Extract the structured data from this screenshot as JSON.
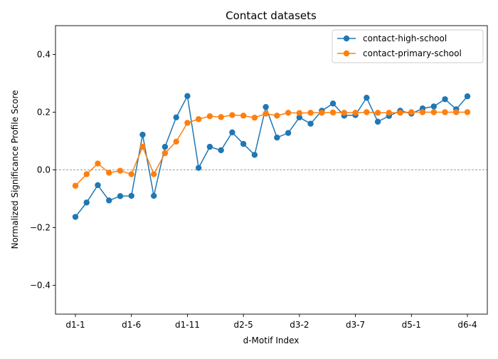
{
  "chart_data": {
    "type": "line",
    "title": "Contact datasets",
    "xlabel": "d-Motif Index",
    "ylabel": "Normalized Significance Profile Score",
    "ylim": [
      -0.5,
      0.5
    ],
    "yticks": [
      -0.4,
      -0.2,
      0.0,
      0.2,
      0.4
    ],
    "ytick_labels": [
      "−0.4",
      "−0.2",
      "0.0",
      "0.2",
      "0.4"
    ],
    "xtick_labels": [
      "d1-1",
      "d1-6",
      "d1-11",
      "d2-5",
      "d3-2",
      "d3-7",
      "d5-1",
      "d6-4"
    ],
    "xtick_positions": [
      0,
      5,
      10,
      15,
      20,
      25,
      30,
      35
    ],
    "zero_line": true,
    "grid": false,
    "legend_position": "top-right",
    "series": [
      {
        "name": "contact-high-school",
        "color": "#1f77b4",
        "values": [
          -0.163,
          -0.113,
          -0.053,
          -0.106,
          -0.091,
          -0.09,
          0.122,
          -0.09,
          0.08,
          0.182,
          0.256,
          0.007,
          0.08,
          0.068,
          0.13,
          0.09,
          0.052,
          0.218,
          0.112,
          0.128,
          0.182,
          0.16,
          0.205,
          0.23,
          0.188,
          0.19,
          0.25,
          0.167,
          0.187,
          0.205,
          0.195,
          0.213,
          0.22,
          0.245,
          0.21,
          0.255
        ]
      },
      {
        "name": "contact-primary-school",
        "color": "#ff7f0e",
        "values": [
          -0.055,
          -0.015,
          0.022,
          -0.01,
          -0.003,
          -0.015,
          0.08,
          -0.015,
          0.058,
          0.098,
          0.163,
          0.176,
          0.186,
          0.183,
          0.19,
          0.188,
          0.181,
          0.195,
          0.188,
          0.198,
          0.197,
          0.198,
          0.198,
          0.199,
          0.198,
          0.198,
          0.2,
          0.198,
          0.198,
          0.198,
          0.2,
          0.2,
          0.2,
          0.2,
          0.2,
          0.2
        ]
      }
    ]
  }
}
